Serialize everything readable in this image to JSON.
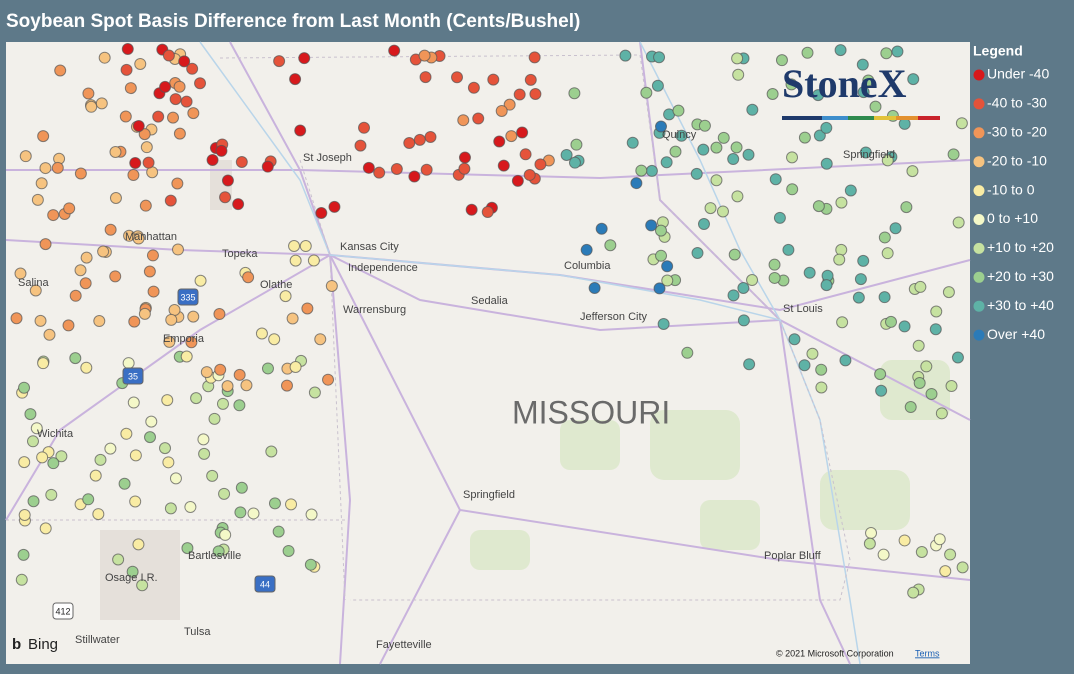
{
  "header": {
    "title": "Soybean Spot Basis Difference from Last Month (Cents/Bushel)"
  },
  "legend": {
    "title": "Legend",
    "items": [
      {
        "label": "Under -40",
        "color": "#d7191c"
      },
      {
        "label": "-40 to -30",
        "color": "#e5533a"
      },
      {
        "label": "-30 to -20",
        "color": "#f09558"
      },
      {
        "label": "-20 to -10",
        "color": "#f6c380"
      },
      {
        "label": "-10 to 0",
        "color": "#f9eca4"
      },
      {
        "label": "0 to +10",
        "color": "#f4f8c8"
      },
      {
        "label": "+10 to +20",
        "color": "#c6e2a0"
      },
      {
        "label": "+20 to +30",
        "color": "#9ccf8f"
      },
      {
        "label": "+30 to +40",
        "color": "#5eb2a6"
      },
      {
        "label": "Over +40",
        "color": "#2b7bb8"
      }
    ]
  },
  "logo": "StoneX",
  "map": {
    "region": "MISSOURI",
    "labels": [
      "St Joseph",
      "Manhattan",
      "Topeka",
      "Kansas City",
      "Independence",
      "Olathe",
      "Salina",
      "Columbia",
      "Sedalia",
      "Warrensburg",
      "Jefferson City",
      "St Louis",
      "Emporia",
      "Wichita",
      "Springfield",
      "Springfield",
      "Quincy",
      "Bartlesville",
      "Osage I.R.",
      "Tulsa",
      "Stillwater",
      "Fayetteville",
      "Poplar Bluff"
    ],
    "highways": [
      "335",
      "35",
      "44",
      "412"
    ]
  },
  "attribution": {
    "bing": "Bing",
    "copyright": "© 2021 Microsoft Corporation",
    "terms": "Terms"
  }
}
